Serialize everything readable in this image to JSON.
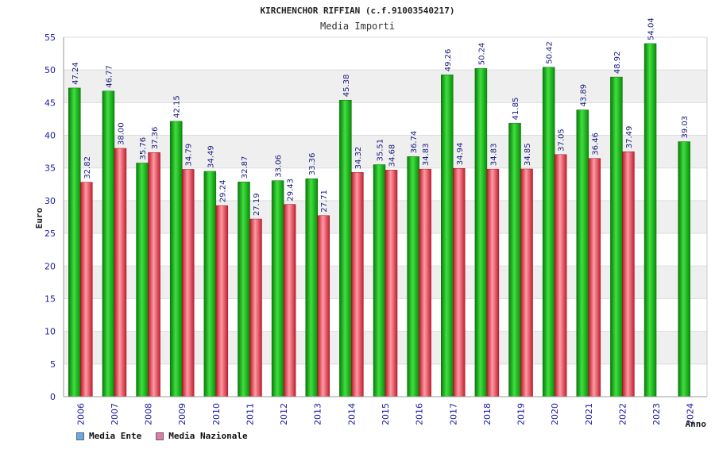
{
  "chart_data": {
    "type": "bar",
    "title": "KIRCHENCHOR RIFFIAN (c.f.91003540217)",
    "subtitle": "Media Importi",
    "ylabel": "Euro",
    "xlabel": "Anno",
    "ylim": [
      0,
      55
    ],
    "yticks": [
      0,
      5,
      10,
      15,
      20,
      25,
      30,
      35,
      40,
      45,
      50,
      55
    ],
    "categories": [
      "2006",
      "2007",
      "2008",
      "2009",
      "2010",
      "2011",
      "2012",
      "2013",
      "2014",
      "2015",
      "2016",
      "2017",
      "2018",
      "2019",
      "2020",
      "2021",
      "2022",
      "2023",
      "2024"
    ],
    "series": [
      {
        "name": "Media Ente",
        "color": "#1fb51f",
        "values": [
          47.24,
          46.77,
          35.76,
          42.15,
          34.49,
          32.87,
          33.06,
          33.36,
          45.38,
          35.51,
          36.74,
          49.26,
          50.24,
          41.85,
          50.42,
          43.89,
          48.92,
          54.04,
          39.03
        ],
        "labels": [
          "47.24",
          "46.77",
          "35.76",
          "42.15",
          "34.49",
          "32.87",
          "33.06",
          "33.36",
          "45.38",
          "35.51",
          "36.74",
          "49.26",
          "50.24",
          "41.85",
          "50.42",
          "43.89",
          "48.92",
          "54.04",
          "39.03"
        ]
      },
      {
        "name": "Media Nazionale",
        "color": "#e03a48",
        "values": [
          32.82,
          38.0,
          37.36,
          34.79,
          29.24,
          27.19,
          29.43,
          27.71,
          34.32,
          34.68,
          34.83,
          34.94,
          34.83,
          34.85,
          37.05,
          36.46,
          37.49,
          null,
          null
        ],
        "labels": [
          "32.82",
          "38.00",
          "37.36",
          "34.79",
          "29.24",
          "27.19",
          "29.43",
          "27.71",
          "34.32",
          "34.68",
          "34.83",
          "34.94",
          "34.83",
          "34.85",
          "37.05",
          "36.46",
          "37.49",
          null,
          null
        ]
      }
    ],
    "legend_colors": {
      "Media Ente": "#6aa8e8",
      "Media Nazionale": "#e07aa8"
    },
    "grid": true,
    "legend_position": "bottom-left"
  }
}
